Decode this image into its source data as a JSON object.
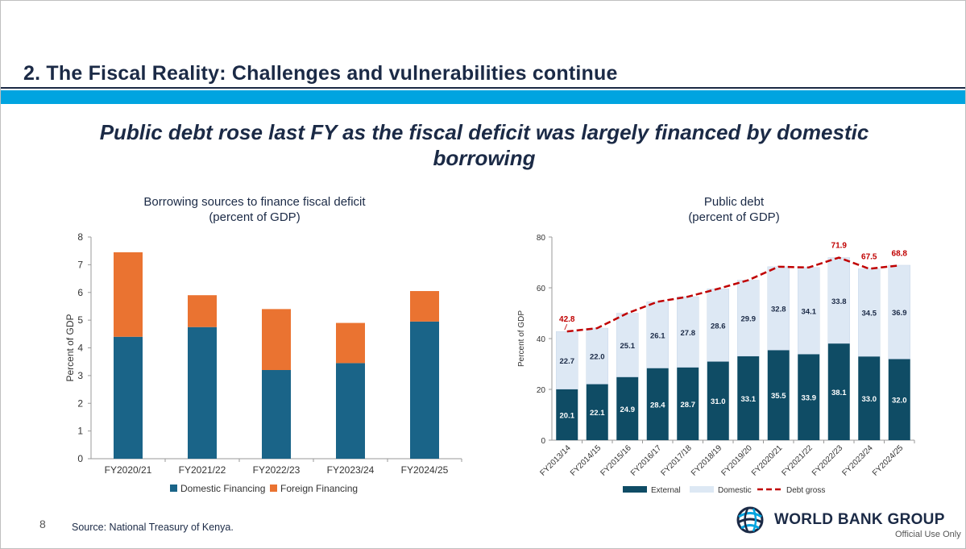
{
  "slide": {
    "title": "2. The Fiscal Reality: Challenges and vulnerabilities continue",
    "subtitle": "Public debt rose last FY as the fiscal deficit was largely financed by domestic borrowing",
    "page_number": "8",
    "source": "Source: National Treasury of Kenya.",
    "logo_text": "WORLD BANK GROUP",
    "classification": "Official Use Only",
    "colors": {
      "navy": "#1b2a46",
      "accent_band": "#00a4e0"
    }
  },
  "chart_data": [
    {
      "type": "bar",
      "stacked": true,
      "title": "Borrowing sources to finance fiscal deficit",
      "subtitle": "(percent of GDP)",
      "xlabel": "",
      "ylabel": "Percent of GDP",
      "ylim": [
        0,
        8
      ],
      "yticks": [
        "0",
        "1",
        "2",
        "3",
        "4",
        "5",
        "6",
        "7",
        "8"
      ],
      "categories": [
        "FY2020/21",
        "FY2021/22",
        "FY2022/23",
        "FY2023/24",
        "FY2024/25"
      ],
      "series": [
        {
          "name": "Domestic Financing",
          "color": "#1a6488",
          "values": [
            4.4,
            4.75,
            3.2,
            3.45,
            4.95
          ]
        },
        {
          "name": "Foreign Financing",
          "color": "#ea7331",
          "values": [
            3.05,
            1.15,
            2.2,
            1.45,
            1.1
          ]
        }
      ],
      "legend": "bottom",
      "grid": false
    },
    {
      "type": "bar",
      "stacked": true,
      "title": "Public debt",
      "subtitle": "(percent of GDP)",
      "xlabel": "",
      "ylabel": "Percent of GDP",
      "ylim": [
        0,
        80
      ],
      "yticks": [
        "0",
        "20",
        "40",
        "60",
        "80"
      ],
      "categories": [
        "FY2013/14",
        "FY2014/15",
        "FY2015/16",
        "FY2016/17",
        "FY2017/18",
        "FY2018/19",
        "FY2019/20",
        "FY2020/21",
        "FY2021/22",
        "FY2022/23",
        "FY2023/24",
        "FY2024/25"
      ],
      "series": [
        {
          "name": "External",
          "color": "#0f4c65",
          "values": [
            20.1,
            22.1,
            24.9,
            28.4,
            28.7,
            31.0,
            33.1,
            35.5,
            33.9,
            38.1,
            33.0,
            32.0
          ],
          "labels": [
            "20.1",
            "22.1",
            "24.9",
            "28.4",
            "28.7",
            "31.0",
            "33.1",
            "35.5",
            "33.9",
            "38.1",
            "33.0",
            "32.0"
          ]
        },
        {
          "name": "Domestic",
          "color": "#dde8f4",
          "values": [
            22.7,
            22.0,
            25.1,
            26.1,
            27.8,
            28.6,
            29.9,
            32.8,
            34.1,
            33.8,
            34.5,
            36.9
          ],
          "labels": [
            "22.7",
            "22.0",
            "25.1",
            "26.1",
            "27.8",
            "28.6",
            "29.9",
            "32.8",
            "34.1",
            "33.8",
            "34.5",
            "36.9"
          ]
        }
      ],
      "line": {
        "name": "Debt gross",
        "color": "#c00000",
        "style": "dashed",
        "values": [
          42.8,
          44.1,
          50.0,
          54.5,
          56.5,
          59.6,
          63.0,
          68.3,
          68.0,
          71.9,
          67.5,
          68.8
        ]
      },
      "line_labels": [
        {
          "index": 0,
          "text": "42.8"
        },
        {
          "index": 9,
          "text": "71.9"
        },
        {
          "index": 10,
          "text": "67.5"
        },
        {
          "index": 11,
          "text": "68.8"
        }
      ],
      "legend": "bottom",
      "grid": false
    }
  ]
}
